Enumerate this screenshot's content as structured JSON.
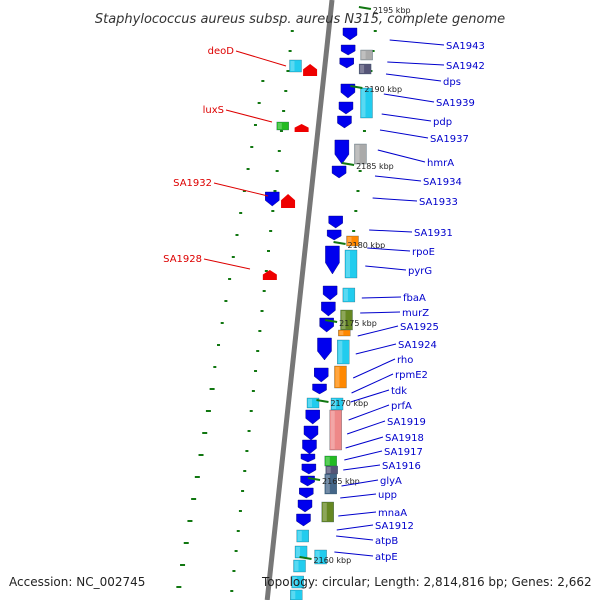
{
  "title": "Staphylococcus aureus subsp. aureus N315, complete genome",
  "accession_label": "Accession: NC_002745",
  "summary_label": "Topology: circular; Length: 2,814,816 bp; Genes: 2,662",
  "colors": {
    "backbone": "#777777",
    "left_label": "#dd0000",
    "right_label": "#0000cc",
    "tick_label": "#222222",
    "dot_green": "#117711",
    "gene_blue": "#0000ee",
    "gene_cyan": "#22ccee",
    "gene_red": "#ee0000",
    "gene_green": "#22bb22",
    "gene_orange": "#ff8800",
    "gene_olive": "#668822",
    "gene_pink": "#ee8888",
    "gene_gray": "#aaaaaa",
    "gene_steel": "#446688",
    "gene_slate": "#555577"
  },
  "position_markers": [
    "2195 kbp",
    "2190 kbp",
    "2185 kbp",
    "2180 kbp",
    "2175 kbp",
    "2170 kbp",
    "2165 kbp",
    "2160 kbp"
  ],
  "left_genes": [
    "deoD",
    "luxS",
    "SA1932",
    "SA1928"
  ],
  "right_genes": [
    "SA1943",
    "SA1942",
    "dps",
    "SA1939",
    "pdp",
    "SA1937",
    "hmrA",
    "SA1934",
    "SA1933",
    "SA1931",
    "rpoE",
    "pyrG",
    "fbaA",
    "murZ",
    "SA1925",
    "SA1924",
    "rho",
    "rpmE2",
    "tdk",
    "prfA",
    "SA1919",
    "SA1918",
    "SA1917",
    "SA1916",
    "glyA",
    "upp",
    "mnaA",
    "SA1912",
    "atpB",
    "atpE"
  ]
}
